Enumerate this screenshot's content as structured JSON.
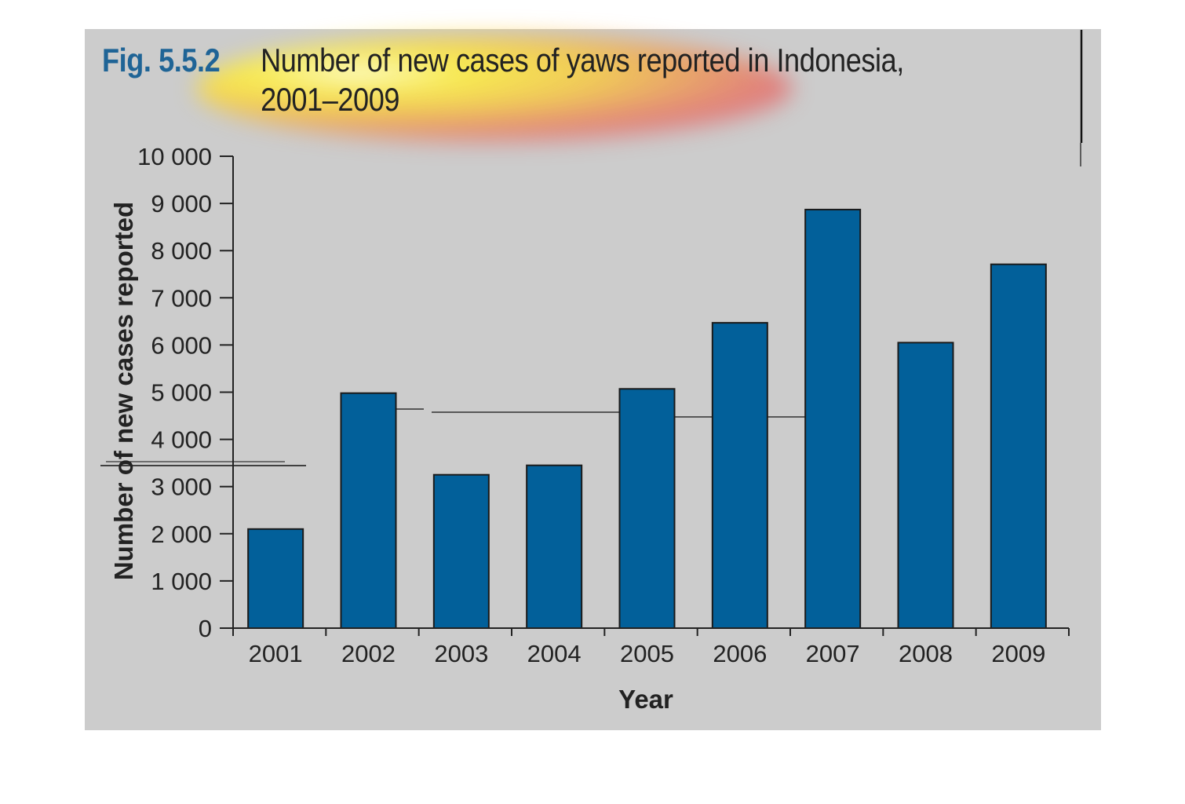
{
  "figure": {
    "number": "Fig. 5.5.2",
    "title_line1": "Number of new cases of yaws reported in Indonesia,",
    "title_line2": "2001–2009"
  },
  "chart_data": {
    "type": "bar",
    "title": "Number of new cases of yaws reported in Indonesia, 2001–2009",
    "xlabel": "Year",
    "ylabel": "Number of new cases reported",
    "categories": [
      "2001",
      "2002",
      "2003",
      "2004",
      "2005",
      "2006",
      "2007",
      "2008",
      "2009"
    ],
    "values": [
      2100,
      4980,
      3250,
      3450,
      5070,
      6470,
      8870,
      6050,
      7710
    ],
    "ylim": [
      0,
      10000
    ],
    "yticks": [
      0,
      1000,
      2000,
      3000,
      4000,
      5000,
      6000,
      7000,
      8000,
      9000,
      10000
    ],
    "ytick_labels": [
      "0",
      "1 000",
      "2 000",
      "3 000",
      "4 000",
      "5 000",
      "6 000",
      "7 000",
      "8 000",
      "9 000",
      "10 000"
    ],
    "bar_color": "#02609a",
    "grid": false,
    "legend": "none"
  }
}
